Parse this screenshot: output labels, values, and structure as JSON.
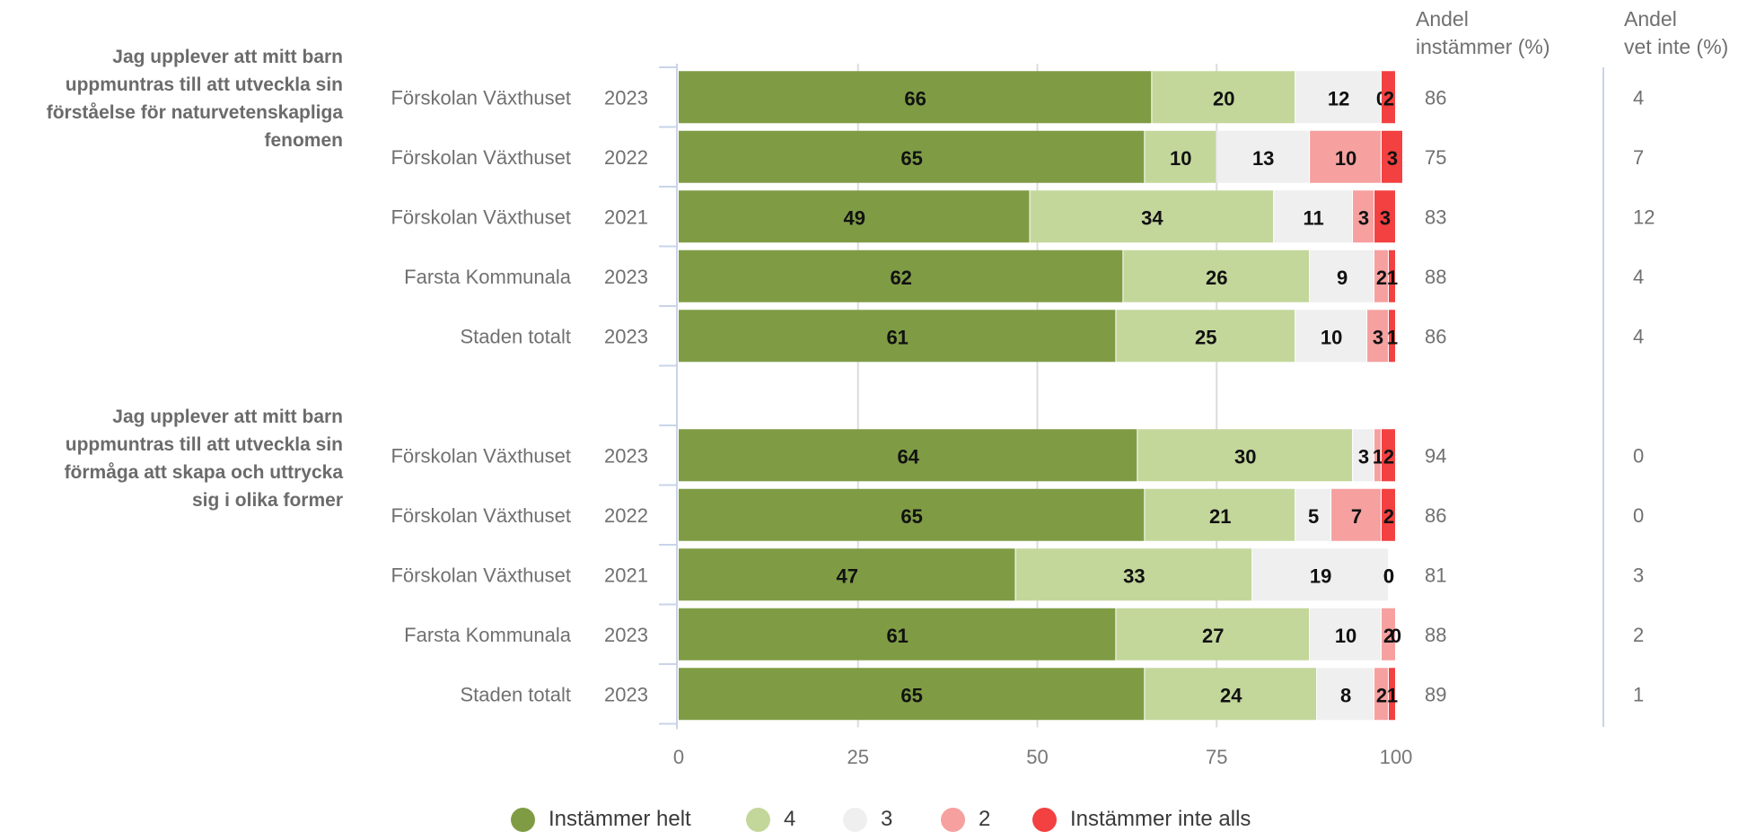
{
  "chart_data": {
    "type": "bar",
    "orientation": "horizontal",
    "stacked": true,
    "xlim": [
      0,
      100
    ],
    "x_ticks": [
      "0",
      "25",
      "50",
      "75",
      "100"
    ],
    "legend_position": "bottom",
    "grid": true,
    "colors": [
      "#7f9c45",
      "#c4d79b",
      "#efefef",
      "#f6a0a0",
      "#f34040"
    ],
    "columns": {
      "agree_header_line1": "Andel",
      "agree_header_line2": "instämmer (%)",
      "dontknow_header_line1": "Andel",
      "dontknow_header_line2": "vet inte (%)"
    },
    "legend": [
      "Instämmer helt",
      "4",
      "3",
      "2",
      "Instämmer inte alls"
    ],
    "groups": [
      {
        "question": "Jag upplever att mitt barn uppmuntras till att utveckla sin förståelse för naturvetenskapliga fenomen",
        "question_lines": [
          "Jag upplever att mitt barn",
          "uppmuntras till att utveckla sin",
          "förståelse för naturvetenskapliga",
          "fenomen"
        ],
        "rows": [
          {
            "unit": "Förskolan Växthuset",
            "year": "2023",
            "values": [
              66,
              20,
              12,
              0,
              2
            ],
            "agree": "86",
            "dontknow": "4"
          },
          {
            "unit": "Förskolan Växthuset",
            "year": "2022",
            "values": [
              65,
              10,
              13,
              10,
              3
            ],
            "agree": "75",
            "dontknow": "7"
          },
          {
            "unit": "Förskolan Växthuset",
            "year": "2021",
            "values": [
              49,
              34,
              11,
              3,
              3
            ],
            "agree": "83",
            "dontknow": "12"
          },
          {
            "unit": "Farsta Kommunala",
            "year": "2023",
            "values": [
              62,
              26,
              9,
              2,
              1
            ],
            "agree": "88",
            "dontknow": "4"
          },
          {
            "unit": "Staden totalt",
            "year": "2023",
            "values": [
              61,
              25,
              10,
              3,
              1
            ],
            "agree": "86",
            "dontknow": "4"
          }
        ]
      },
      {
        "question": "Jag upplever att mitt barn uppmuntras till att utveckla sin förmåga att skapa och uttrycka sig i olika former",
        "question_lines": [
          "Jag upplever att mitt barn",
          "uppmuntras till att utveckla sin",
          "förmåga att skapa och uttrycka",
          "sig i olika former"
        ],
        "rows": [
          {
            "unit": "Förskolan Växthuset",
            "year": "2023",
            "values": [
              64,
              30,
              3,
              1,
              2
            ],
            "agree": "94",
            "dontknow": "0"
          },
          {
            "unit": "Förskolan Växthuset",
            "year": "2022",
            "values": [
              65,
              21,
              5,
              7,
              2
            ],
            "agree": "86",
            "dontknow": "0"
          },
          {
            "unit": "Förskolan Växthuset",
            "year": "2021",
            "values": [
              47,
              33,
              19,
              0,
              0
            ],
            "agree": "81",
            "dontknow": "3"
          },
          {
            "unit": "Farsta Kommunala",
            "year": "2023",
            "values": [
              61,
              27,
              10,
              2,
              0
            ],
            "agree": "88",
            "dontknow": "2"
          },
          {
            "unit": "Staden totalt",
            "year": "2023",
            "values": [
              65,
              24,
              8,
              2,
              1
            ],
            "agree": "89",
            "dontknow": "1"
          }
        ]
      }
    ]
  }
}
